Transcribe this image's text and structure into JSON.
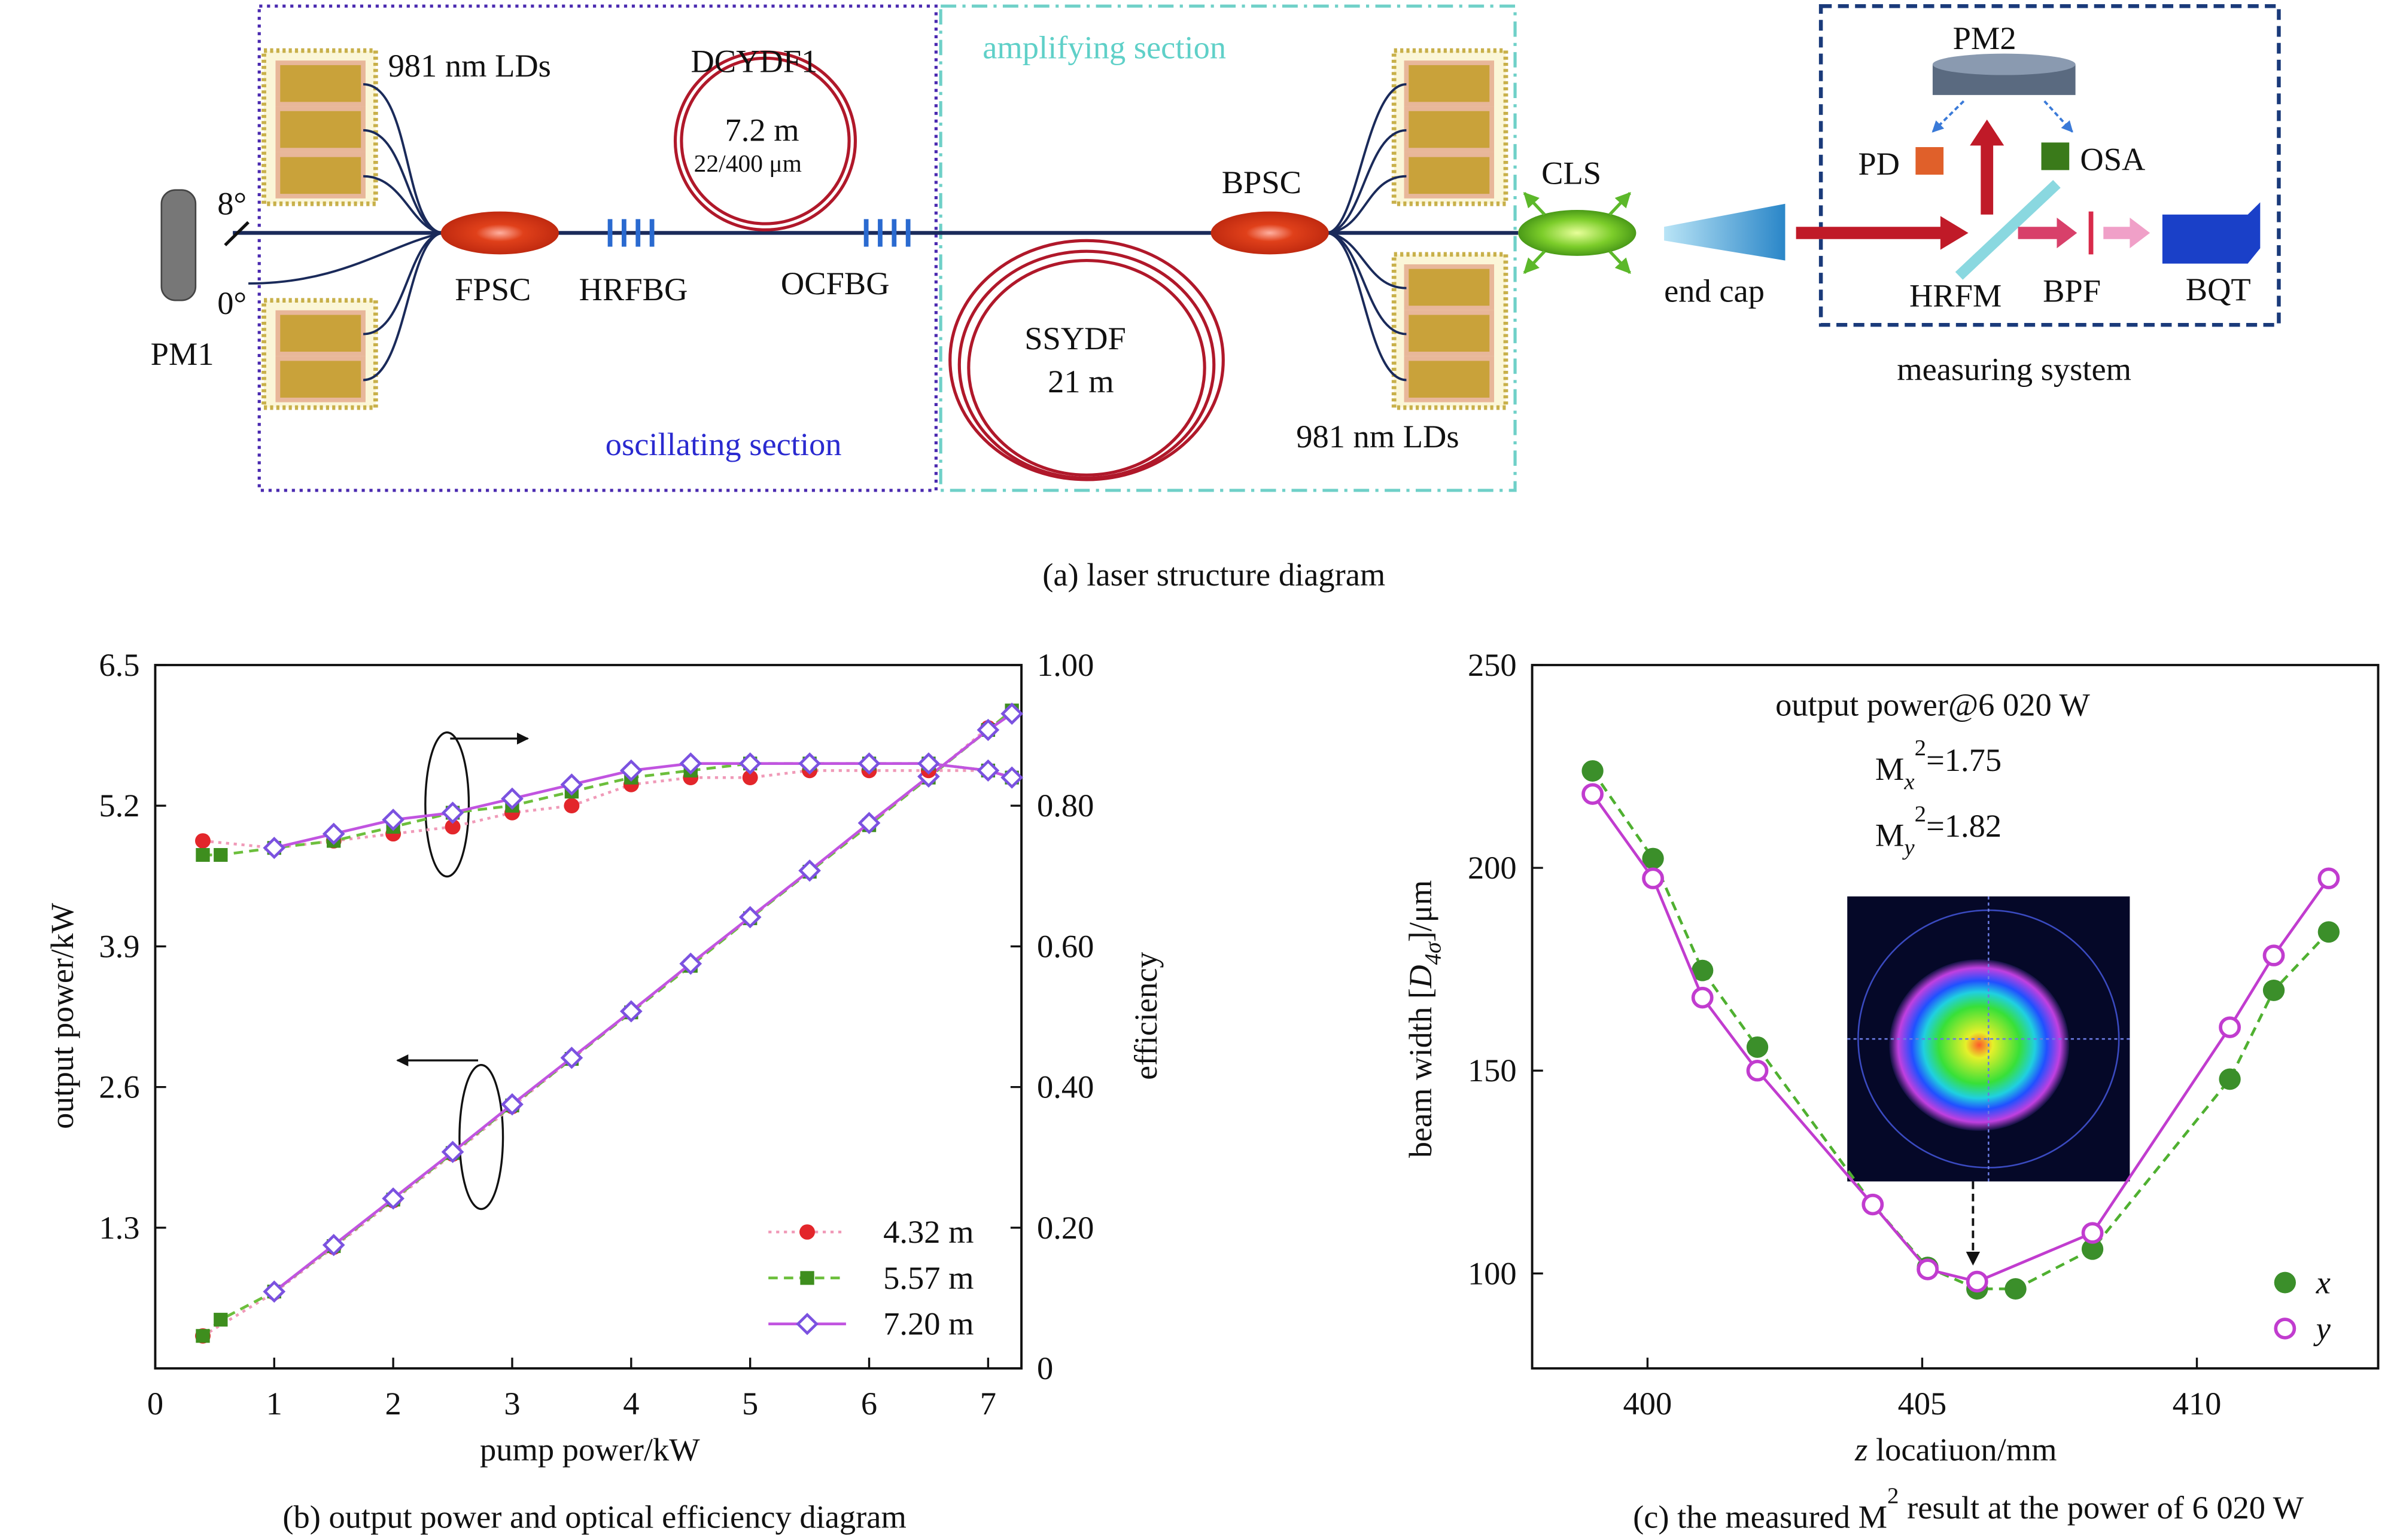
{
  "diagram": {
    "ld_left": "981 nm LDs",
    "dcydf1": "DCYDF1",
    "dcydf1_length": "7.2 m",
    "dcydf1_core": "22/400 μm",
    "amplifying": "amplifying section",
    "angle_8": "8°",
    "angle_0": "0°",
    "pm1": "PM1",
    "fpsc": "FPSC",
    "hrfbg": "HRFBG",
    "ocfbg": "OCFBG",
    "ssydf": "SSYDF",
    "ssydf_length": "21 m",
    "oscillating": "oscillating section",
    "bpsc": "BPSC",
    "ld_right": "981 nm LDs",
    "cls": "CLS",
    "end_cap": "end cap",
    "pm2": "PM2",
    "pd": "PD",
    "osa": "OSA",
    "hrfm": "HRFM",
    "bpf": "BPF",
    "bqt": "BQT",
    "measuring": "measuring system",
    "caption": "(a) laser structure diagram"
  },
  "chart_data": [
    {
      "type": "line",
      "caption": "(b) output power and optical efficiency diagram",
      "xlabel": "pump power/kW",
      "ylabel": "output power/kW",
      "y2label": "efficiency",
      "xlim": [
        0,
        7.28
      ],
      "xticks": [
        0,
        1,
        2,
        3,
        4,
        5,
        6,
        7
      ],
      "ylim": [
        0,
        6.5
      ],
      "yticks": [
        1.3,
        2.6,
        3.9,
        5.2,
        6.5
      ],
      "y2lim": [
        0,
        1
      ],
      "y2ticks": [
        0,
        {
          "value": 0.2,
          "label": "0.20"
        },
        {
          "value": 0.4,
          "label": "0.40"
        },
        {
          "value": 0.6,
          "label": "0.60"
        },
        {
          "value": 0.8,
          "label": "0.80"
        },
        {
          "value": 1,
          "label": "1.00"
        }
      ],
      "series": [
        {
          "name": "4.32 m",
          "color": "#e3262b",
          "line_color": "#f09ab8",
          "line_style": "dotted",
          "marker": "circle",
          "x": [
            0.4,
            1,
            1.5,
            2,
            2.5,
            3,
            3.5,
            4,
            4.5,
            5,
            5.5,
            6,
            6.5,
            7
          ],
          "values": [
            0.3,
            0.7,
            1.12,
            1.55,
            1.98,
            2.42,
            2.86,
            3.3,
            3.73,
            4.16,
            4.6,
            5.03,
            5.46,
            5.92
          ]
        },
        {
          "name": "5.57 m",
          "color": "#3e8e1e",
          "line_color": "#6cbf3c",
          "line_style": "dashed",
          "marker": "square",
          "x": [
            0.4,
            0.55,
            1,
            1.5,
            2,
            2.5,
            3,
            3.5,
            4,
            4.5,
            5,
            5.5,
            6,
            6.5,
            7,
            7.2
          ],
          "values": [
            0.3,
            0.45,
            0.71,
            1.13,
            1.56,
            1.99,
            2.43,
            2.86,
            3.29,
            3.72,
            4.16,
            4.59,
            5.02,
            5.46,
            5.9,
            6.08
          ]
        },
        {
          "name": "7.20 m",
          "color": "#7b52e0",
          "line_color": "#c154e0",
          "line_style": "solid",
          "marker": "open-diamond",
          "x": [
            1,
            1.5,
            2,
            2.5,
            3,
            3.5,
            4,
            4.5,
            5,
            5.5,
            6,
            6.5,
            7,
            7.2
          ],
          "values": [
            0.71,
            1.14,
            1.57,
            2.0,
            2.44,
            2.87,
            3.3,
            3.74,
            4.17,
            4.6,
            5.04,
            5.47,
            5.9,
            6.05
          ]
        },
        {
          "name": "4.32 m",
          "axis": "y2",
          "color": "#e3262b",
          "line_color": "#f09ab8",
          "line_style": "dotted",
          "marker": "circle",
          "x": [
            0.4,
            1,
            1.5,
            2,
            2.5,
            3,
            3.5,
            4,
            4.5,
            5,
            5.5,
            6,
            6.5,
            7
          ],
          "values": [
            0.75,
            0.74,
            0.75,
            0.76,
            0.77,
            0.79,
            0.8,
            0.83,
            0.84,
            0.84,
            0.85,
            0.85,
            0.85,
            0.85
          ]
        },
        {
          "name": "5.57 m",
          "axis": "y2",
          "color": "#3e8e1e",
          "line_color": "#6cbf3c",
          "line_style": "dashed",
          "marker": "square",
          "x": [
            0.4,
            0.55,
            1,
            1.5,
            2,
            2.5,
            3,
            3.5,
            4,
            4.5,
            5,
            5.5,
            6,
            6.5,
            7,
            7.2
          ],
          "values": [
            0.73,
            0.73,
            0.74,
            0.75,
            0.77,
            0.79,
            0.8,
            0.82,
            0.84,
            0.85,
            0.86,
            0.86,
            0.86,
            0.86,
            0.85,
            0.84
          ]
        },
        {
          "name": "7.20 m",
          "axis": "y2",
          "color": "#7b52e0",
          "line_color": "#c154e0",
          "line_style": "solid",
          "marker": "open-diamond",
          "x": [
            1,
            1.5,
            2,
            2.5,
            3,
            3.5,
            4,
            4.5,
            5,
            5.5,
            6,
            6.5,
            7,
            7.2
          ],
          "values": [
            0.74,
            0.76,
            0.78,
            0.79,
            0.81,
            0.83,
            0.85,
            0.86,
            0.86,
            0.86,
            0.86,
            0.86,
            0.85,
            0.84
          ]
        }
      ],
      "legend": "lower right"
    },
    {
      "type": "line",
      "caption": {
        "before": "(c) the measured M",
        "sup": "2",
        "after": " result at the power of 6 020 W"
      },
      "xlabel": {
        "italic": "z",
        "after": " locatiuon/mm"
      },
      "ylabel": {
        "before": "beam width [",
        "italic": "D",
        "sub": "4σ",
        "after": "]/μm"
      },
      "annotations": {
        "title": "output power@6 020 W",
        "mx": {
          "base": "M",
          "sub": "x",
          "sup": "2",
          "after": "=1.75"
        },
        "my": {
          "base": "M",
          "sub": "y",
          "sup": "2",
          "after": "=1.82"
        }
      },
      "xlim": [
        397.9,
        413.3
      ],
      "xticks": [
        400,
        405,
        410
      ],
      "ylim": [
        76.6,
        250
      ],
      "yticks": [
        100,
        150,
        200,
        250
      ],
      "series": [
        {
          "name": "x",
          "color": "#3b8f2a",
          "line_color": "#4fb030",
          "line_style": "dashed",
          "marker": "circle",
          "x": [
            399.0,
            400.1,
            401.0,
            402.0,
            404.1,
            405.1,
            406.0,
            406.7,
            408.1,
            410.6,
            411.4,
            412.4
          ],
          "values": [
            223.9,
            202.3,
            174.7,
            155.8,
            117,
            101.5,
            96.2,
            96.2,
            106,
            147.9,
            169.8,
            184.2
          ]
        },
        {
          "name": "y",
          "color": "#c13ccf",
          "line_color": "#c13ccf",
          "line_style": "solid",
          "marker": "open-circle",
          "x": [
            399.0,
            400.1,
            401.0,
            402.0,
            404.1,
            405.1,
            406.0,
            408.1,
            410.6,
            411.4,
            412.4
          ],
          "values": [
            218.2,
            197.4,
            168,
            150,
            117,
            101,
            98,
            110,
            160.7,
            178.4,
            197.4
          ]
        }
      ],
      "legend": "lower right"
    }
  ]
}
